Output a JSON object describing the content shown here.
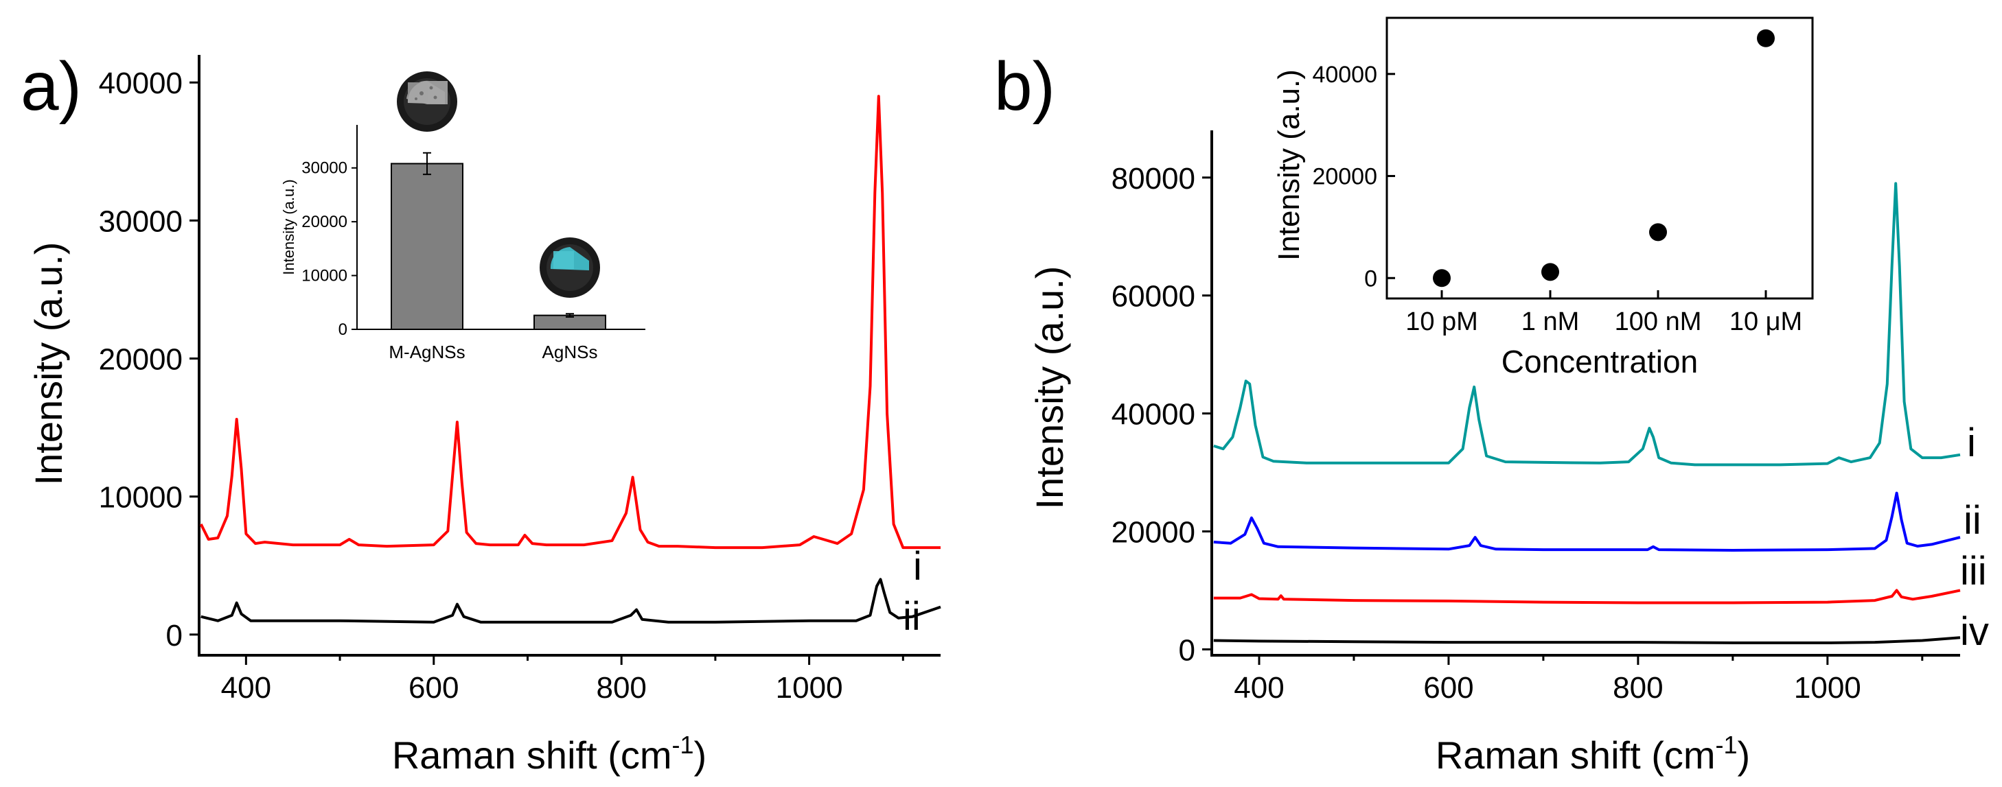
{
  "chart_data": [
    {
      "panel": "a)",
      "type": "line",
      "xlabel": "Raman shift (cm⁻¹)",
      "ylabel": "Intensity (a.u.)",
      "xlim": [
        350,
        1140
      ],
      "ylim": [
        -1500,
        42000
      ],
      "xticks": [
        400,
        600,
        800,
        1000
      ],
      "yticks": [
        0,
        10000,
        20000,
        30000,
        40000
      ],
      "series": [
        {
          "name": "i",
          "color": "#ff0000",
          "x": [
            352,
            360,
            370,
            380,
            385,
            390,
            395,
            400,
            410,
            420,
            450,
            500,
            510,
            520,
            550,
            600,
            615,
            620,
            625,
            630,
            635,
            645,
            660,
            690,
            697,
            705,
            720,
            760,
            790,
            805,
            812,
            816,
            820,
            828,
            840,
            860,
            900,
            950,
            990,
            1005,
            1015,
            1030,
            1045,
            1058,
            1065,
            1070,
            1074,
            1078,
            1083,
            1090,
            1100,
            1120,
            1140
          ],
          "y": [
            8000,
            6900,
            7000,
            8600,
            11500,
            15600,
            12000,
            7300,
            6600,
            6700,
            6500,
            6500,
            6900,
            6500,
            6400,
            6500,
            7500,
            11500,
            15400,
            11000,
            7400,
            6600,
            6500,
            6500,
            7200,
            6600,
            6500,
            6500,
            6800,
            8800,
            11400,
            9500,
            7600,
            6700,
            6400,
            6400,
            6300,
            6300,
            6500,
            7100,
            6900,
            6600,
            7300,
            10500,
            18000,
            32000,
            39000,
            32000,
            16000,
            8000,
            6300,
            6300,
            6300
          ]
        },
        {
          "name": "ii",
          "color": "#000000",
          "x": [
            352,
            370,
            385,
            390,
            395,
            405,
            450,
            500,
            600,
            620,
            625,
            632,
            650,
            700,
            790,
            810,
            816,
            822,
            850,
            900,
            1000,
            1050,
            1065,
            1072,
            1076,
            1080,
            1086,
            1095,
            1110,
            1140
          ],
          "y": [
            1300,
            1000,
            1400,
            2300,
            1500,
            1000,
            1000,
            1000,
            900,
            1400,
            2200,
            1300,
            900,
            900,
            900,
            1400,
            1800,
            1100,
            900,
            900,
            1000,
            1000,
            1400,
            3500,
            4000,
            3000,
            1600,
            1200,
            1300,
            2000
          ]
        }
      ],
      "series_labels": [
        "i",
        "ii"
      ],
      "ylabel_text": "Intensity (a.u.)",
      "inset": {
        "type": "bar",
        "categories": [
          "M-AgNSs",
          "AgNSs"
        ],
        "values": [
          30800,
          2600
        ],
        "errors": [
          2000,
          300
        ],
        "ylabel": "Intensity (a.u.)",
        "ylim": [
          0,
          38000
        ],
        "yticks": [
          0,
          10000,
          20000,
          30000
        ],
        "bar_color": "#808080"
      }
    },
    {
      "panel": "b)",
      "type": "line",
      "xlabel": "Raman shift (cm⁻¹)",
      "ylabel": "Intensity (a.u.)",
      "xlim": [
        350,
        1140
      ],
      "ylim": [
        -1000,
        88000
      ],
      "xticks": [
        400,
        600,
        800,
        1000
      ],
      "yticks": [
        0,
        20000,
        40000,
        60000,
        80000
      ],
      "series": [
        {
          "name": "i",
          "color": "#009999",
          "x": [
            352,
            362,
            372,
            380,
            386,
            390,
            396,
            404,
            415,
            450,
            500,
            600,
            615,
            622,
            627,
            632,
            640,
            660,
            700,
            760,
            790,
            805,
            812,
            816,
            822,
            835,
            860,
            900,
            950,
            1000,
            1012,
            1025,
            1045,
            1055,
            1063,
            1068,
            1072,
            1076,
            1081,
            1088,
            1100,
            1120,
            1140
          ],
          "y": [
            34500,
            34000,
            36000,
            41000,
            45500,
            45000,
            38000,
            32600,
            31900,
            31600,
            31600,
            31600,
            34000,
            41000,
            44500,
            39000,
            32800,
            31800,
            31700,
            31600,
            31800,
            34000,
            37500,
            36000,
            32500,
            31600,
            31300,
            31300,
            31300,
            31500,
            32500,
            31800,
            32500,
            35000,
            45000,
            65000,
            79000,
            65000,
            42000,
            34000,
            32500,
            32500,
            33000
          ]
        },
        {
          "name": "ii",
          "color": "#0000ff",
          "x": [
            352,
            370,
            385,
            392,
            398,
            405,
            420,
            500,
            600,
            622,
            628,
            634,
            650,
            700,
            810,
            816,
            822,
            900,
            1000,
            1050,
            1062,
            1068,
            1073,
            1078,
            1084,
            1095,
            1110,
            1140
          ],
          "y": [
            18200,
            18000,
            19500,
            22300,
            20500,
            18000,
            17400,
            17200,
            17000,
            17600,
            19000,
            17600,
            17000,
            16900,
            16900,
            17400,
            16900,
            16800,
            16900,
            17100,
            18500,
            22500,
            26500,
            22000,
            18000,
            17500,
            17800,
            19000
          ]
        },
        {
          "name": "iii",
          "color": "#ff0000",
          "x": [
            352,
            380,
            392,
            400,
            420,
            423,
            426,
            500,
            600,
            700,
            800,
            900,
            1000,
            1050,
            1068,
            1073,
            1078,
            1090,
            1110,
            1140
          ],
          "y": [
            8700,
            8700,
            9300,
            8600,
            8500,
            9100,
            8500,
            8300,
            8200,
            8000,
            7900,
            7900,
            8000,
            8300,
            9000,
            10000,
            8900,
            8500,
            9000,
            10000
          ]
        },
        {
          "name": "iv",
          "color": "#000000",
          "x": [
            352,
            400,
            500,
            600,
            700,
            800,
            900,
            1000,
            1050,
            1100,
            1140
          ],
          "y": [
            1500,
            1400,
            1300,
            1200,
            1200,
            1200,
            1100,
            1100,
            1200,
            1500,
            2000
          ]
        }
      ],
      "series_labels": [
        "i",
        "ii",
        "iii",
        "iv"
      ],
      "ylabel_text": "Intensity (a.u.)",
      "inset": {
        "type": "scatter",
        "xlabel": "Concentration",
        "ylabel": "Intensity (a.u.)",
        "categories": [
          "10 pM",
          "1 nM",
          "100 nM",
          "10 μM"
        ],
        "values": [
          0,
          1200,
          9000,
          47000
        ],
        "ylim": [
          -4000,
          51000
        ],
        "yticks": [
          0,
          20000,
          40000
        ],
        "marker_color": "#000000"
      }
    }
  ]
}
